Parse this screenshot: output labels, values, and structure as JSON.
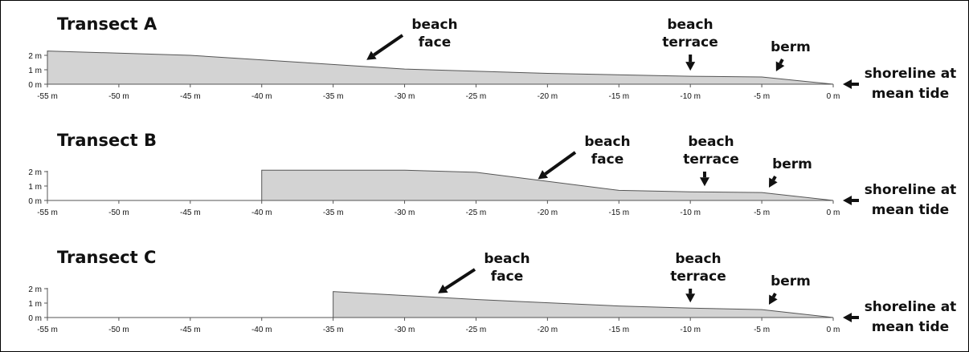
{
  "chart_data": {
    "type": "area",
    "xlim": [
      -55,
      0
    ],
    "ylim": [
      0,
      2
    ],
    "x_tick_labels": [
      "-55 m",
      "-50 m",
      "-45 m",
      "-40 m",
      "-35 m",
      "-30 m",
      "-25 m",
      "-20 m",
      "-15 m",
      "-10 m",
      "-5 m",
      "0 m"
    ],
    "y_tick_labels": [
      "2 m",
      "1 m",
      "0 m"
    ],
    "fill_color": "#d3d3d3",
    "outline_color": "#555555",
    "side_annotation": {
      "line1": "shoreline at",
      "line2": "mean tide"
    },
    "panels": [
      {
        "title": "Transect A",
        "profile": [
          [
            -55,
            2.3
          ],
          [
            -45,
            2.0
          ],
          [
            -30,
            1.05
          ],
          [
            -20,
            0.75
          ],
          [
            -10,
            0.55
          ],
          [
            -5,
            0.5
          ],
          [
            0,
            0.0
          ]
        ],
        "annotations": [
          {
            "text": [
              "beach",
              "face"
            ],
            "points_to": [
              -33,
              1.4
            ]
          },
          {
            "text": [
              "beach",
              "terrace"
            ],
            "points_to": [
              -10,
              0.55
            ]
          },
          {
            "text": [
              "berm"
            ],
            "points_to": [
              -4,
              0.5
            ]
          }
        ]
      },
      {
        "title": "Transect B",
        "profile": [
          [
            -40,
            0.0
          ],
          [
            -40,
            2.1
          ],
          [
            -30,
            2.1
          ],
          [
            -25,
            1.95
          ],
          [
            -15,
            0.7
          ],
          [
            -10,
            0.6
          ],
          [
            -5,
            0.55
          ],
          [
            0,
            0.0
          ]
        ],
        "annotations": [
          {
            "text": [
              "beach",
              "face"
            ],
            "points_to": [
              -21,
              1.2
            ]
          },
          {
            "text": [
              "beach",
              "terrace"
            ],
            "points_to": [
              -9,
              0.6
            ]
          },
          {
            "text": [
              "berm"
            ],
            "points_to": [
              -4.5,
              0.5
            ]
          }
        ]
      },
      {
        "title": "Transect C",
        "profile": [
          [
            -35,
            0.0
          ],
          [
            -35,
            1.8
          ],
          [
            -25,
            1.25
          ],
          [
            -15,
            0.8
          ],
          [
            -10,
            0.65
          ],
          [
            -5,
            0.55
          ],
          [
            0,
            0.0
          ]
        ],
        "annotations": [
          {
            "text": [
              "beach",
              "face"
            ],
            "points_to": [
              -28,
              1.4
            ]
          },
          {
            "text": [
              "beach",
              "terrace"
            ],
            "points_to": [
              -10,
              0.65
            ]
          },
          {
            "text": [
              "berm"
            ],
            "points_to": [
              -4.5,
              0.5
            ]
          }
        ]
      }
    ]
  }
}
